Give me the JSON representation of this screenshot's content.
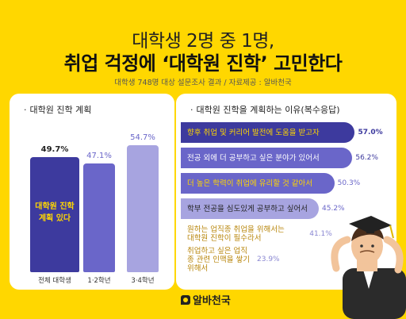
{
  "header": {
    "title_line1": "대학생 2명 중 1명,",
    "title_line2": "취업 걱정에 ‘대학원 진학’ 고민한다",
    "subtitle": "대학생 748명 대상 설문조사 결과 / 자료제공 : 알바천국"
  },
  "logo_text": "알바천국",
  "colors": {
    "background": "#FFD700",
    "bar_dark": "#3D3A9E",
    "bar_mid": "#6A66C9",
    "bar_light": "#A7A4E0",
    "bar_pale": "#D6D4F1"
  },
  "chart_data": [
    {
      "type": "bar",
      "title": "대학원 진학 계획",
      "categories": [
        "전체 대학생",
        "1·2학년",
        "3·4학년"
      ],
      "values": [
        49.7,
        47.1,
        54.7
      ],
      "value_labels": [
        "49.7%",
        "47.1%",
        "54.7%"
      ],
      "inner_label": "대학원 진학 계획 있다",
      "ylim": [
        0,
        60
      ]
    },
    {
      "type": "bar",
      "orientation": "horizontal",
      "title": "대학원 진학을 계획하는 이유(복수응답)",
      "categories": [
        "향후 취업 및 커리어 발전에 도움을 받고자",
        "전공 외에 더 공부하고 싶은 분야가 있어서",
        "더 높은 학력이 취업에 유리할 것 같아서",
        "학부 전공을 심도있게 공부하고 싶어서",
        "원하는 업직종 취업을 위해서는 대학원 진학이 필수라서",
        "취업하고 싶은 업직종 관련 인맥을 쌓기 위해서"
      ],
      "values": [
        57.0,
        56.2,
        50.3,
        45.2,
        41.1,
        23.9
      ],
      "value_labels": [
        "57.0%",
        "56.2%",
        "50.3%",
        "45.2%",
        "41.1%",
        "23.9%"
      ],
      "xlim": [
        0,
        60
      ]
    }
  ]
}
